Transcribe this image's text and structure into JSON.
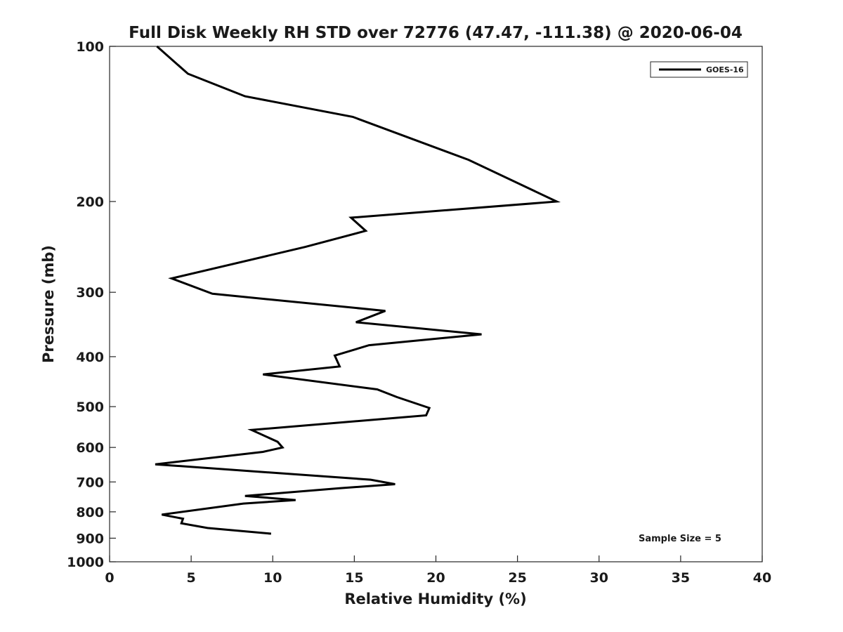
{
  "chart_data": {
    "type": "line",
    "title": "Full Disk Weekly RH STD over 72776 (47.47, -111.38) @ 2020-06-04",
    "xlabel": "Relative Humidity (%)",
    "ylabel": "Pressure (mb)",
    "xlim": [
      0,
      40
    ],
    "ylim": [
      100,
      1000
    ],
    "yscale": "log",
    "y_reversed": true,
    "xticks": [
      0,
      5,
      10,
      15,
      20,
      25,
      30,
      35,
      40
    ],
    "xtick_labels": [
      "0",
      "5",
      "10",
      "15",
      "20",
      "25",
      "30",
      "35",
      "40"
    ],
    "yticks": [
      100,
      200,
      300,
      400,
      500,
      600,
      700,
      800,
      900,
      1000
    ],
    "ytick_labels": [
      "100",
      "200",
      "300",
      "400",
      "500",
      "600",
      "700",
      "800",
      "900",
      "1000"
    ],
    "grid": false,
    "legend_position": "top-right",
    "series": [
      {
        "name": "GOES-16",
        "color": "#000000",
        "rh": [
          2.9,
          4.8,
          8.3,
          14.9,
          22.0,
          27.4,
          14.8,
          15.7,
          12.0,
          3.8,
          6.3,
          16.9,
          15.1,
          22.8,
          15.9,
          13.8,
          14.1,
          9.4,
          16.4,
          17.6,
          19.6,
          19.4,
          8.7,
          10.3,
          10.6,
          9.4,
          2.8,
          16.0,
          17.5,
          14.1,
          8.3,
          11.4,
          8.2,
          3.2,
          4.5,
          4.4,
          6.0,
          9.9
        ],
        "pressure": [
          100,
          113,
          125,
          137,
          166,
          200,
          215,
          228,
          245,
          282,
          302,
          326,
          343,
          362,
          380,
          398,
          418,
          433,
          463,
          479,
          503,
          520,
          555,
          585,
          600,
          612,
          647,
          693,
          707,
          720,
          745,
          759,
          771,
          810,
          825,
          842,
          860,
          882
        ]
      }
    ],
    "annotations": [
      "Sample Size = 5"
    ]
  }
}
